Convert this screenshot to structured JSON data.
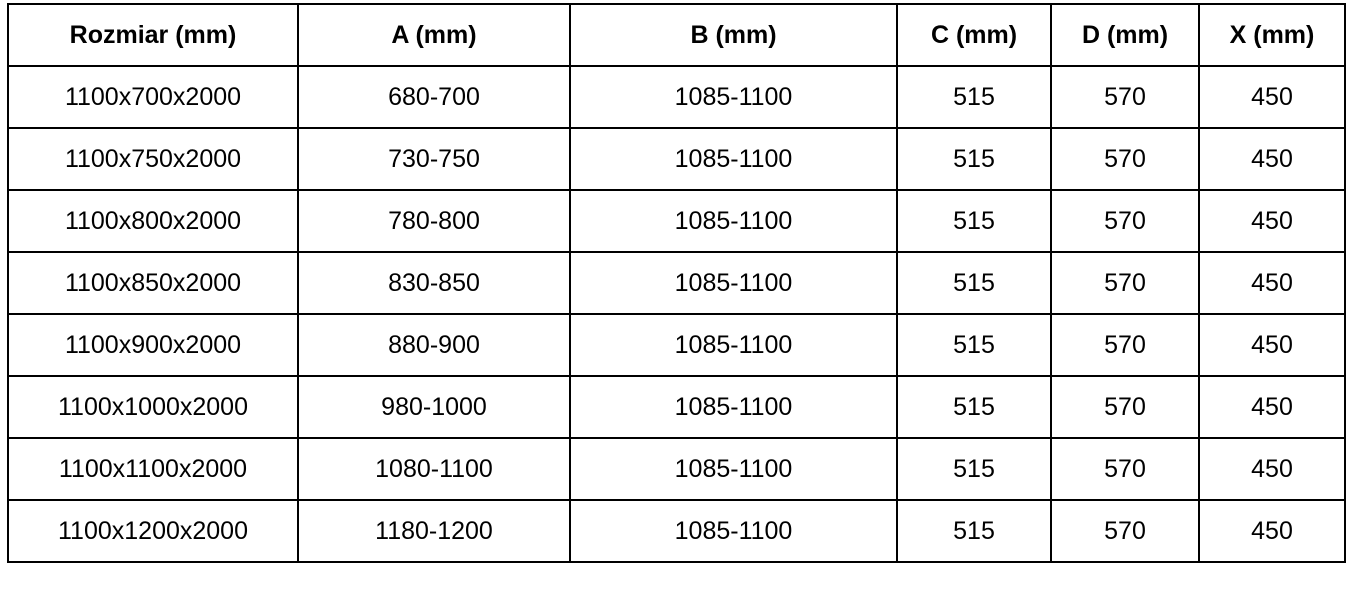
{
  "chart_data": {
    "type": "table",
    "columns": [
      "Rozmiar (mm)",
      "A (mm)",
      "B (mm)",
      "C (mm)",
      "D (mm)",
      "X (mm)"
    ],
    "rows": [
      [
        "1100x700x2000",
        "680-700",
        "1085-1100",
        "515",
        "570",
        "450"
      ],
      [
        "1100x750x2000",
        "730-750",
        "1085-1100",
        "515",
        "570",
        "450"
      ],
      [
        "1100x800x2000",
        "780-800",
        "1085-1100",
        "515",
        "570",
        "450"
      ],
      [
        "1100x850x2000",
        "830-850",
        "1085-1100",
        "515",
        "570",
        "450"
      ],
      [
        "1100x900x2000",
        "880-900",
        "1085-1100",
        "515",
        "570",
        "450"
      ],
      [
        "1100x1000x2000",
        "980-1000",
        "1085-1100",
        "515",
        "570",
        "450"
      ],
      [
        "1100x1100x2000",
        "1080-1100",
        "1085-1100",
        "515",
        "570",
        "450"
      ],
      [
        "1100x1200x2000",
        "1180-1200",
        "1085-1100",
        "515",
        "570",
        "450"
      ]
    ],
    "layout": {
      "grid": true,
      "border_color": "#000000",
      "text_color": "#000000",
      "background_color": "#ffffff",
      "header_bold": true
    }
  }
}
